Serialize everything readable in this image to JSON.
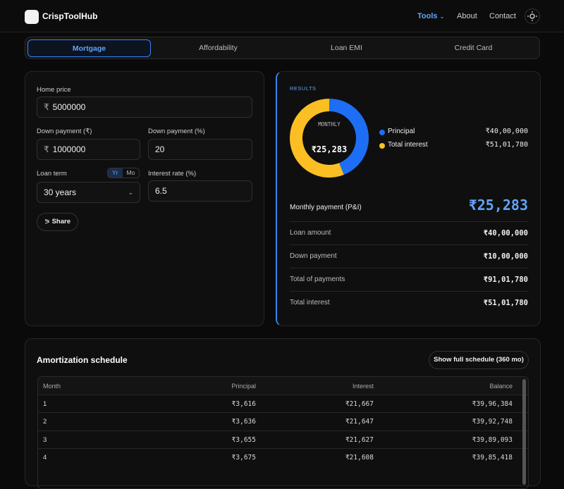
{
  "nav": {
    "brand": "CrispToolHub",
    "links": [
      "Tools",
      "About",
      "Contact"
    ]
  },
  "tabs": [
    "Mortgage",
    "Affordability",
    "Loan EMI",
    "Credit Card"
  ],
  "form": {
    "home_price": {
      "label": "Home price",
      "prefix": "₹",
      "value": "5000000"
    },
    "down_payment_amount": {
      "label": "Down payment (₹)",
      "prefix": "₹",
      "value": "1000000"
    },
    "down_payment_pct": {
      "label": "Down payment (%)",
      "value": "20"
    },
    "loan_term": {
      "label": "Loan term",
      "toggle": [
        "Yr",
        "Mo"
      ],
      "value": "30 years"
    },
    "interest_rate": {
      "label": "Interest rate (%)",
      "value": "6.5"
    },
    "share": "Share"
  },
  "results": {
    "heading": "RESULTS",
    "donut_center_label": "MONTHLY",
    "donut_center_value": "₹25,283",
    "breakdown": [
      {
        "name": "Principal",
        "value": 4000000,
        "label": "₹40,00,000",
        "color": "#1d6ef5"
      },
      {
        "name": "Total interest",
        "value": 5101780,
        "label": "₹51,01,780",
        "color": "#fbbf24"
      }
    ],
    "monthly": {
      "label": "Monthly payment (P&I)",
      "value": "₹25,283"
    },
    "rows": [
      [
        "Loan amount",
        "₹40,00,000"
      ],
      [
        "Down payment",
        "₹10,00,000"
      ],
      [
        "Total of payments",
        "₹91,01,780"
      ],
      [
        "Total interest",
        "₹51,01,780"
      ]
    ]
  },
  "amortization": {
    "title": "Amortization schedule",
    "button": "Show full schedule (360 mo)",
    "columns": [
      "Month",
      "Principal",
      "Interest",
      "Balance"
    ],
    "rows": [
      [
        "1",
        "₹3,616",
        "₹21,667",
        "₹39,96,384"
      ],
      [
        "2",
        "₹3,636",
        "₹21,647",
        "₹39,92,748"
      ],
      [
        "3",
        "₹3,655",
        "₹21,627",
        "₹39,89,093"
      ],
      [
        "4",
        "₹3,675",
        "₹21,608",
        "₹39,85,418"
      ]
    ]
  }
}
